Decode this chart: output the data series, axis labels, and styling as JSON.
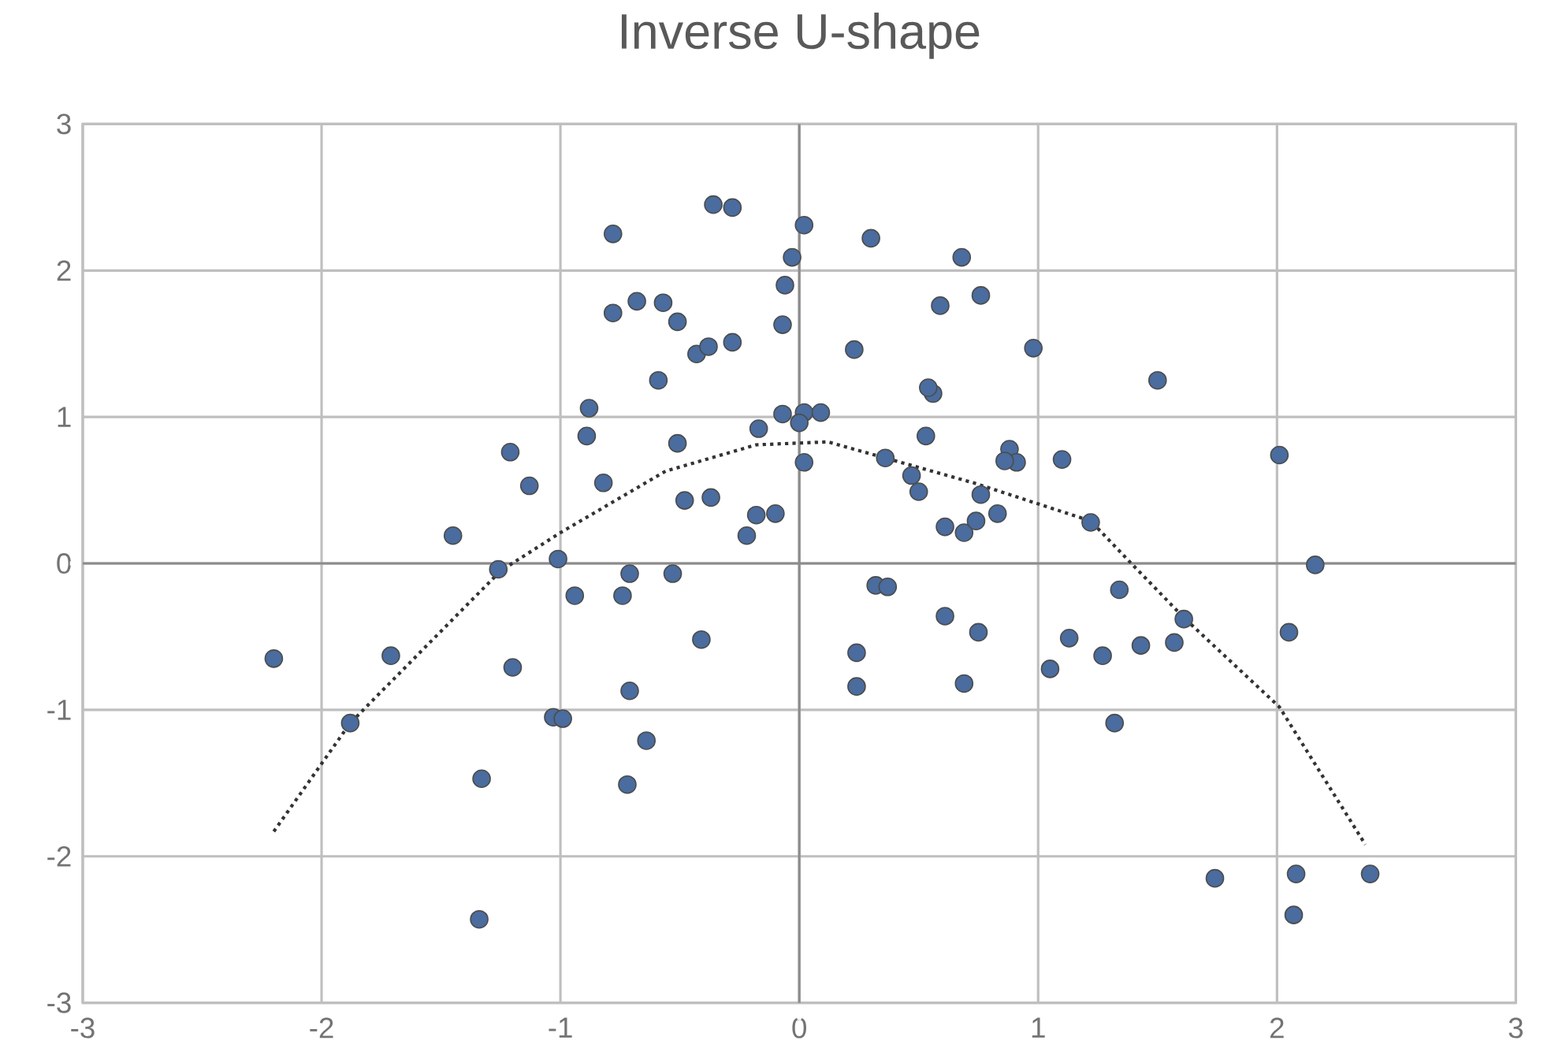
{
  "chart_data": {
    "type": "scatter",
    "title": "Inverse U-shape",
    "xlim": [
      -3,
      3
    ],
    "ylim": [
      -3,
      3
    ],
    "xticks": [
      -3,
      -2,
      -1,
      0,
      1,
      2,
      3
    ],
    "yticks": [
      -3,
      -2,
      -1,
      0,
      1,
      2,
      3
    ],
    "grid": true,
    "marker": "circle",
    "series": [
      {
        "type": "scatter",
        "color": "#4a6c9e",
        "marker": "circle",
        "x": [
          -2.2,
          -1.88,
          -1.71,
          -1.45,
          -1.33,
          -1.34,
          -1.26,
          -1.21,
          -1.2,
          -1.13,
          -1.03,
          -0.99,
          -0.94,
          -0.74,
          -0.71,
          -0.53,
          -0.41,
          -0.71,
          -0.64,
          -0.72,
          -0.78,
          -0.36,
          -0.28,
          -0.03,
          -0.06,
          -0.07,
          -0.78,
          -0.68,
          -0.57,
          -0.51,
          -0.43,
          -0.38,
          -0.28,
          -0.59,
          -0.88,
          -0.89,
          -1.01,
          -0.82,
          -0.51,
          -0.48,
          -0.37,
          -0.18,
          -0.1,
          -0.22,
          -0.17,
          0.02,
          0.3,
          0.68,
          0.76,
          0.59,
          0.23,
          0.98,
          1.5,
          0.56,
          0.54,
          -0.07,
          0.02,
          0.09,
          0.0,
          0.02,
          0.36,
          0.53,
          0.47,
          0.5,
          0.88,
          0.91,
          0.86,
          1.1,
          2.01,
          0.76,
          0.83,
          0.61,
          0.69,
          0.74,
          1.22,
          2.16,
          0.32,
          0.37,
          1.34,
          0.61,
          0.75,
          0.24,
          0.24,
          0.69,
          1.13,
          1.05,
          1.27,
          1.43,
          1.57,
          1.61,
          2.05,
          1.32,
          1.74,
          2.08,
          2.39,
          2.07
        ],
        "values": [
          -0.65,
          -1.09,
          -0.63,
          0.19,
          -1.47,
          -2.43,
          -0.04,
          0.76,
          -0.71,
          0.53,
          -1.05,
          -1.06,
          -0.22,
          -0.22,
          -0.07,
          -0.07,
          -0.52,
          -0.87,
          -1.21,
          -1.51,
          2.25,
          2.45,
          2.43,
          2.09,
          1.9,
          1.63,
          1.71,
          1.79,
          1.78,
          1.65,
          1.43,
          1.48,
          1.51,
          1.25,
          1.06,
          0.87,
          0.03,
          0.55,
          0.82,
          0.43,
          0.45,
          0.33,
          0.34,
          0.19,
          0.92,
          2.31,
          2.22,
          2.09,
          1.83,
          1.76,
          1.46,
          1.47,
          1.25,
          1.16,
          1.2,
          1.02,
          1.03,
          1.03,
          0.96,
          0.69,
          0.72,
          0.87,
          0.6,
          0.49,
          0.78,
          0.69,
          0.7,
          0.71,
          0.74,
          0.47,
          0.34,
          0.25,
          0.21,
          0.29,
          0.28,
          -0.01,
          -0.15,
          -0.16,
          -0.18,
          -0.36,
          -0.47,
          -0.61,
          -0.84,
          -0.82,
          -0.51,
          -0.72,
          -0.63,
          -0.56,
          -0.54,
          -0.38,
          -0.47,
          -1.09,
          -2.15,
          -2.12,
          -2.12,
          -2.4
        ]
      },
      {
        "type": "line",
        "color": "#333333",
        "line_style": "dotted",
        "marker": "none",
        "x": [
          -2.2,
          -1.88,
          -1.25,
          -1.0,
          -0.56,
          -0.18,
          0.12,
          0.73,
          1.22,
          1.39,
          1.61,
          2.01,
          2.37
        ],
        "values": [
          -1.83,
          -1.09,
          -0.05,
          0.21,
          0.63,
          0.81,
          0.83,
          0.55,
          0.29,
          0.0,
          -0.37,
          -0.98,
          -1.92
        ]
      }
    ]
  }
}
